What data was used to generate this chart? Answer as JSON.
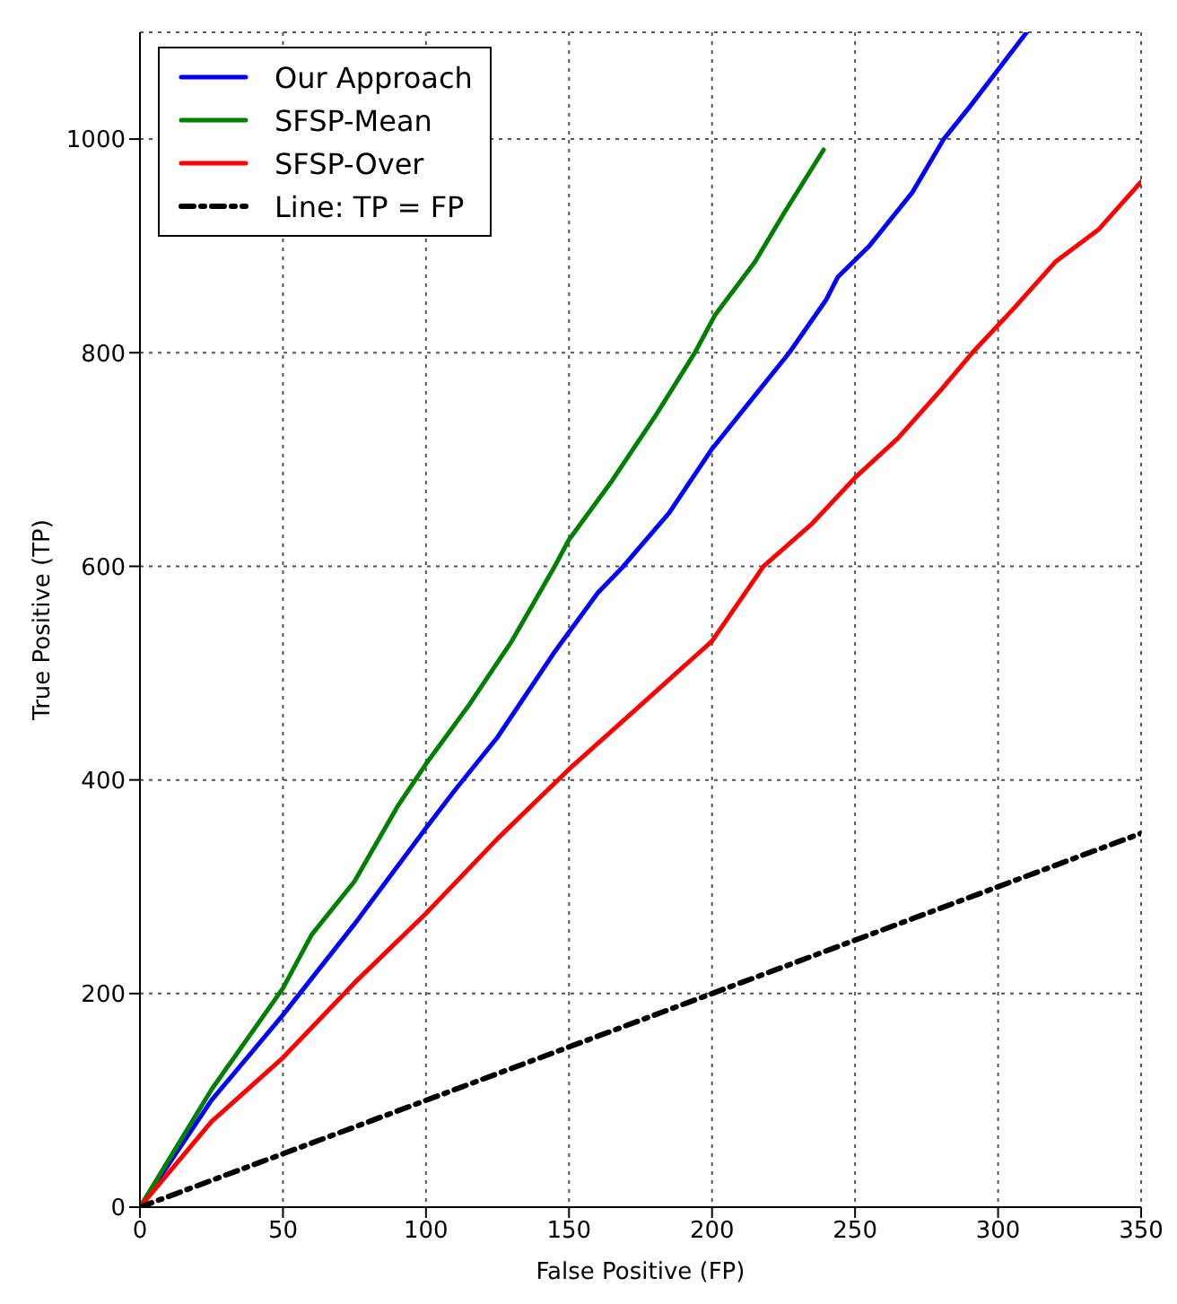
{
  "chart_data": {
    "type": "line",
    "xlabel": "False Positive (FP)",
    "ylabel": "True Positive (TP)",
    "xlim": [
      0,
      350
    ],
    "ylim": [
      0,
      1100
    ],
    "xticks": [
      0,
      50,
      100,
      150,
      200,
      250,
      300,
      350
    ],
    "yticks": [
      0,
      200,
      400,
      600,
      800,
      1000
    ],
    "grid": true,
    "legend": "top left",
    "marker": "none",
    "series": [
      {
        "name": "Our Approach",
        "color": "#0000ff",
        "line_style": "solid",
        "x": [
          0,
          25,
          50,
          75,
          100,
          110,
          125,
          145,
          160,
          169,
          185,
          200,
          215,
          227,
          240,
          244,
          255,
          270,
          281,
          290,
          300,
          310
        ],
        "values": [
          0,
          100,
          180,
          265,
          355,
          390,
          440,
          520,
          575,
          600,
          650,
          710,
          760,
          800,
          850,
          871,
          900,
          950,
          1000,
          1030,
          1065,
          1100
        ]
      },
      {
        "name": "SFSP-Mean",
        "color": "#008000",
        "line_style": "solid",
        "x": [
          0,
          25,
          50,
          60,
          75,
          90,
          100,
          115,
          130,
          145,
          150,
          165,
          180,
          194,
          201,
          215,
          225,
          232,
          239
        ],
        "values": [
          0,
          110,
          205,
          255,
          305,
          375,
          415,
          470,
          530,
          600,
          625,
          680,
          740,
          800,
          835,
          885,
          930,
          960,
          990
        ]
      },
      {
        "name": "SFSP-Over",
        "color": "#ff0000",
        "line_style": "solid",
        "x": [
          0,
          25,
          50,
          75,
          100,
          125,
          150,
          175,
          200,
          218,
          235,
          250,
          265,
          280,
          291,
          305,
          320,
          335,
          350
        ],
        "values": [
          0,
          80,
          140,
          210,
          275,
          345,
          410,
          470,
          530,
          600,
          640,
          683,
          720,
          765,
          800,
          840,
          885,
          915,
          960
        ]
      },
      {
        "name": "Line: TP = FP",
        "color": "#000000",
        "line_style": "dashed",
        "x": [
          0,
          350
        ],
        "values": [
          0,
          350
        ]
      }
    ]
  }
}
